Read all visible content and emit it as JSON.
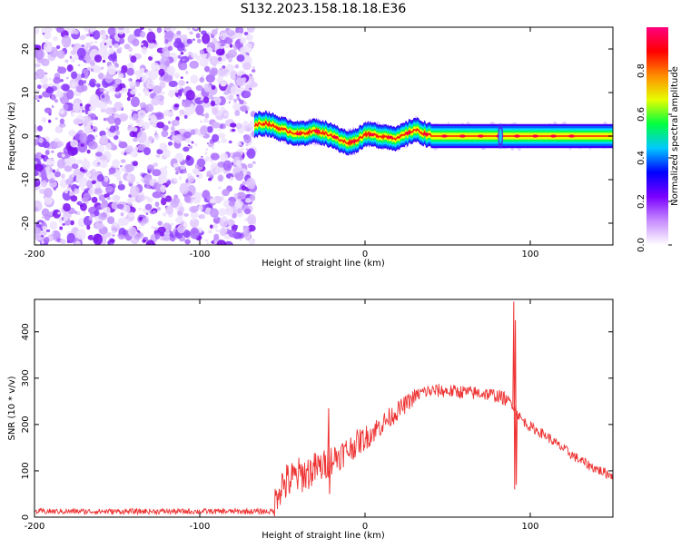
{
  "page": {
    "title": "S132.2023.158.18.18.E36"
  },
  "chart_data": [
    {
      "type": "heatmap",
      "title": "S132.2023.158.18.18.E36",
      "xlabel": "Height of straight line (km)",
      "ylabel": "Frequency (Hz)",
      "xlim": [
        -200,
        150
      ],
      "ylim": [
        -25,
        25
      ],
      "x_ticks": [
        -200,
        -100,
        0,
        100
      ],
      "y_ticks": [
        -20,
        -10,
        0,
        10,
        20
      ],
      "noise_region_x": [
        -200,
        -67
      ],
      "signal_start_x": -67,
      "signal_ridge": {
        "x": [
          -67,
          -60,
          -50,
          -40,
          -30,
          -20,
          -15,
          -10,
          -5,
          0,
          10,
          20,
          30,
          40,
          50,
          60,
          70,
          80,
          82,
          90,
          100,
          110,
          120,
          125,
          130,
          140,
          150
        ],
        "freq": [
          2.5,
          3.0,
          1.5,
          0.5,
          1.2,
          0.2,
          -1.0,
          -1.5,
          -1.0,
          0.5,
          0.0,
          -0.5,
          1.5,
          0.0,
          0.0,
          0.0,
          0.0,
          0.0,
          0.0,
          0.0,
          0.0,
          0.0,
          0.0,
          0.0,
          0.0,
          0.0,
          0.0
        ]
      },
      "colorbar": {
        "label": "Normalized spectral amplitude",
        "ticks": [
          "0.0",
          "0.2",
          "0.4",
          "0.6",
          "0.8"
        ],
        "range": [
          0,
          1
        ],
        "colors": [
          "#ffffff",
          "#c78cff",
          "#7a00ff",
          "#0000ff",
          "#00c8ff",
          "#00ff40",
          "#e6ff00",
          "#ff8c00",
          "#ff0000",
          "#ff0080"
        ]
      },
      "grid": false
    },
    {
      "type": "line",
      "xlabel": "Height of straight line (km)",
      "ylabel": "SNR (10 * v/v)",
      "xlim": [
        -200,
        150
      ],
      "ylim": [
        0,
        470
      ],
      "x_ticks": [
        -200,
        -100,
        0,
        100
      ],
      "y_ticks": [
        0,
        100,
        200,
        300,
        400
      ],
      "color": "#ee3333",
      "series": [
        {
          "x": [
            -200,
            -150,
            -100,
            -70,
            -55,
            -53,
            -50,
            -45,
            -40,
            -35,
            -30,
            -25,
            -22,
            -20,
            -15,
            -10,
            -5,
            0,
            5,
            10,
            15,
            20,
            25,
            30,
            35,
            40,
            45,
            50,
            55,
            60,
            65,
            70,
            75,
            80,
            85,
            88,
            90,
            91,
            92,
            95,
            100,
            105,
            110,
            115,
            120,
            125,
            130,
            135,
            140,
            145,
            150
          ],
          "values": [
            10,
            10,
            10,
            10,
            10,
            60,
            70,
            80,
            90,
            95,
            105,
            110,
            120,
            125,
            135,
            145,
            160,
            170,
            185,
            200,
            215,
            230,
            245,
            260,
            270,
            272,
            273,
            272,
            271,
            270,
            268,
            268,
            265,
            262,
            255,
            248,
            240,
            230,
            225,
            210,
            195,
            185,
            175,
            160,
            148,
            135,
            123,
            113,
            104,
            96,
            90
          ]
        }
      ],
      "spikes": [
        {
          "x": -22,
          "values": [
            235,
            50
          ]
        },
        {
          "x": 90,
          "values": [
            465,
            60
          ]
        },
        {
          "x": 91,
          "values": [
            425,
            70
          ]
        }
      ],
      "grid": false
    }
  ]
}
